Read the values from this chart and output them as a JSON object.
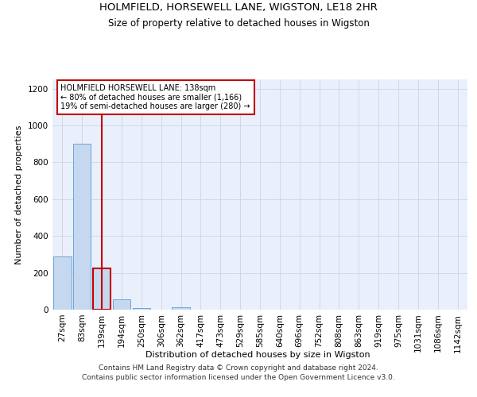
{
  "title_line1": "HOLMFIELD, HORSEWELL LANE, WIGSTON, LE18 2HR",
  "title_line2": "Size of property relative to detached houses in Wigston",
  "xlabel": "Distribution of detached houses by size in Wigston",
  "ylabel": "Number of detached properties",
  "footnote": "Contains HM Land Registry data © Crown copyright and database right 2024.\nContains public sector information licensed under the Open Government Licence v3.0.",
  "annotation_title": "HOLMFIELD HORSEWELL LANE: 138sqm",
  "annotation_line2": "← 80% of detached houses are smaller (1,166)",
  "annotation_line3": "19% of semi-detached houses are larger (280) →",
  "bar_categories": [
    "27sqm",
    "83sqm",
    "139sqm",
    "194sqm",
    "250sqm",
    "306sqm",
    "362sqm",
    "417sqm",
    "473sqm",
    "529sqm",
    "585sqm",
    "640sqm",
    "696sqm",
    "752sqm",
    "808sqm",
    "863sqm",
    "919sqm",
    "975sqm",
    "1031sqm",
    "1086sqm",
    "1142sqm"
  ],
  "bar_values": [
    290,
    900,
    225,
    55,
    10,
    0,
    15,
    0,
    0,
    0,
    0,
    0,
    0,
    0,
    0,
    0,
    0,
    0,
    0,
    0,
    0
  ],
  "bar_color": "#c5d8f0",
  "bar_edge_color": "#5b9bd5",
  "highlight_bar_index": 2,
  "highlight_edge_color": "#c00000",
  "vline_color": "#c00000",
  "vline_x_index": 2,
  "annotation_box_color": "#c00000",
  "ylim": [
    0,
    1250
  ],
  "yticks": [
    0,
    200,
    400,
    600,
    800,
    1000,
    1200
  ],
  "grid_color": "#d0d8e8",
  "bg_color": "#eaf0fb",
  "title1_fontsize": 9.5,
  "title2_fontsize": 8.5,
  "axis_label_fontsize": 8,
  "tick_fontsize": 7.5,
  "annotation_fontsize": 7,
  "footnote_fontsize": 6.5
}
